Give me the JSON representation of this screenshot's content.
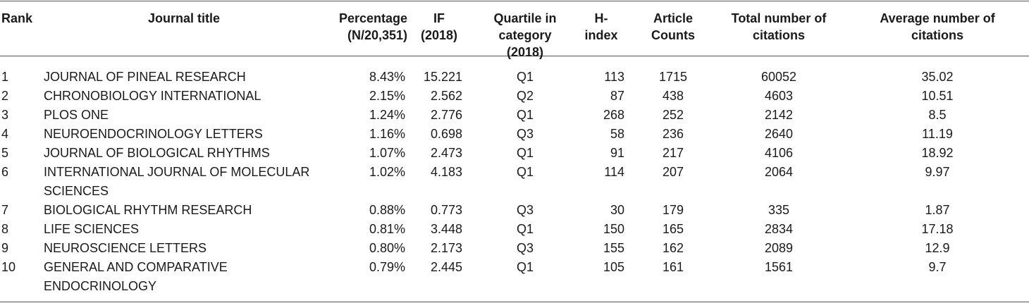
{
  "table": {
    "headers": {
      "rank": "Rank",
      "journal_title": "Journal title",
      "percentage_line1": "Percentage",
      "percentage_line2": "(N/20,351)",
      "if_line1": "IF",
      "if_line2": "(2018)",
      "quartile_line1": "Quartile in category",
      "quartile_line2": "(2018)",
      "hindex_line1": "H-",
      "hindex_line2": "index",
      "article_line1": "Article",
      "article_line2": "Counts",
      "total_line1": "Total number of",
      "total_line2": "citations",
      "avg_line1": "Average number of",
      "avg_line2": "citations"
    },
    "rows": [
      {
        "rank": "1",
        "title": "JOURNAL OF PINEAL RESEARCH",
        "percentage": "8.43%",
        "if": "15.221",
        "quartile": "Q1",
        "hindex": "113",
        "articles": "1715",
        "total": "60052",
        "avg": "35.02"
      },
      {
        "rank": "2",
        "title": "CHRONOBIOLOGY INTERNATIONAL",
        "percentage": "2.15%",
        "if": "2.562",
        "quartile": "Q2",
        "hindex": "87",
        "articles": "438",
        "total": "4603",
        "avg": "10.51"
      },
      {
        "rank": "3",
        "title": "PLOS ONE",
        "percentage": "1.24%",
        "if": "2.776",
        "quartile": "Q1",
        "hindex": "268",
        "articles": "252",
        "total": "2142",
        "avg": "8.5"
      },
      {
        "rank": "4",
        "title": "NEUROENDOCRINOLOGY LETTERS",
        "percentage": "1.16%",
        "if": "0.698",
        "quartile": "Q3",
        "hindex": "58",
        "articles": "236",
        "total": "2640",
        "avg": "11.19"
      },
      {
        "rank": "5",
        "title": "JOURNAL OF BIOLOGICAL RHYTHMS",
        "percentage": "1.07%",
        "if": "2.473",
        "quartile": "Q1",
        "hindex": "91",
        "articles": "217",
        "total": "4106",
        "avg": "18.92"
      },
      {
        "rank": "6",
        "title": "INTERNATIONAL JOURNAL OF MOLECULAR SCIENCES",
        "percentage": "1.02%",
        "if": "4.183",
        "quartile": "Q1",
        "hindex": "114",
        "articles": "207",
        "total": "2064",
        "avg": "9.97"
      },
      {
        "rank": "7",
        "title": "BIOLOGICAL RHYTHM RESEARCH",
        "percentage": "0.88%",
        "if": "0.773",
        "quartile": "Q3",
        "hindex": "30",
        "articles": "179",
        "total": "335",
        "avg": "1.87"
      },
      {
        "rank": "8",
        "title": "LIFE SCIENCES",
        "percentage": "0.81%",
        "if": "3.448",
        "quartile": "Q1",
        "hindex": "150",
        "articles": "165",
        "total": "2834",
        "avg": "17.18"
      },
      {
        "rank": "9",
        "title": "NEUROSCIENCE LETTERS",
        "percentage": "0.80%",
        "if": "2.173",
        "quartile": "Q3",
        "hindex": "155",
        "articles": "162",
        "total": "2089",
        "avg": "12.9"
      },
      {
        "rank": "10",
        "title": "GENERAL AND COMPARATIVE ENDOCRINOLOGY",
        "percentage": "0.79%",
        "if": "2.445",
        "quartile": "Q1",
        "hindex": "105",
        "articles": "161",
        "total": "1561",
        "avg": "9.7"
      }
    ]
  }
}
